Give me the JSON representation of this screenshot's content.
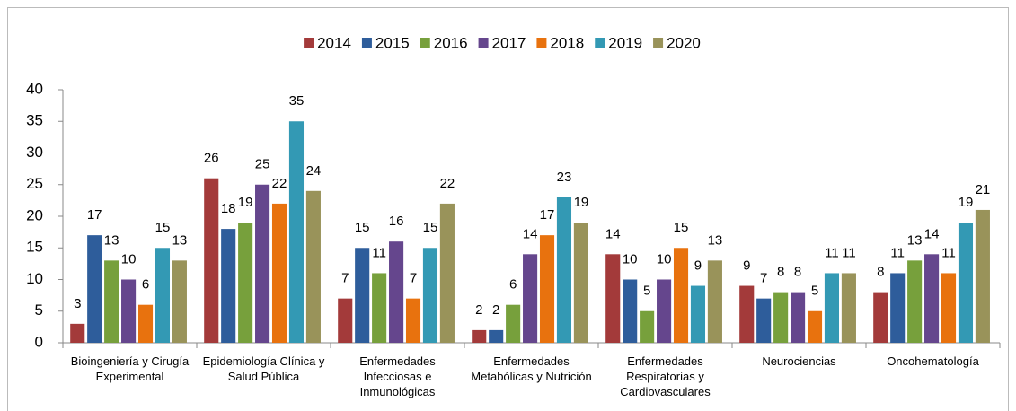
{
  "chart_data": {
    "type": "bar",
    "categories": [
      "Bioingeniería y Cirugía Experimental",
      "Epidemiología Clínica y Salud Pública",
      "Enfermedades Infecciosas e Inmunológicas",
      "Enfermedades Metabólicas y Nutrición",
      "Enfermedades Respiratorias y Cardiovasculares",
      "Neurociencias",
      "Oncohematología"
    ],
    "series": [
      {
        "name": "2014",
        "color": "#a33a3a",
        "values": [
          3,
          26,
          7,
          2,
          14,
          9,
          8
        ]
      },
      {
        "name": "2015",
        "color": "#2e5d9b",
        "values": [
          17,
          18,
          15,
          2,
          10,
          7,
          11
        ]
      },
      {
        "name": "2016",
        "color": "#77a03c",
        "values": [
          13,
          19,
          11,
          6,
          5,
          8,
          13
        ]
      },
      {
        "name": "2017",
        "color": "#65468d",
        "values": [
          10,
          25,
          16,
          14,
          10,
          8,
          14
        ]
      },
      {
        "name": "2018",
        "color": "#e8720e",
        "values": [
          6,
          22,
          7,
          17,
          15,
          5,
          11
        ]
      },
      {
        "name": "2019",
        "color": "#3399b4",
        "values": [
          15,
          35,
          15,
          23,
          9,
          11,
          19
        ]
      },
      {
        "name": "2020",
        "color": "#99935a",
        "values": [
          13,
          24,
          22,
          19,
          13,
          11,
          21
        ]
      }
    ],
    "ylim": [
      0,
      40
    ],
    "yticks": [
      0,
      5,
      10,
      15,
      20,
      25,
      30,
      35,
      40
    ],
    "legend": "top"
  }
}
